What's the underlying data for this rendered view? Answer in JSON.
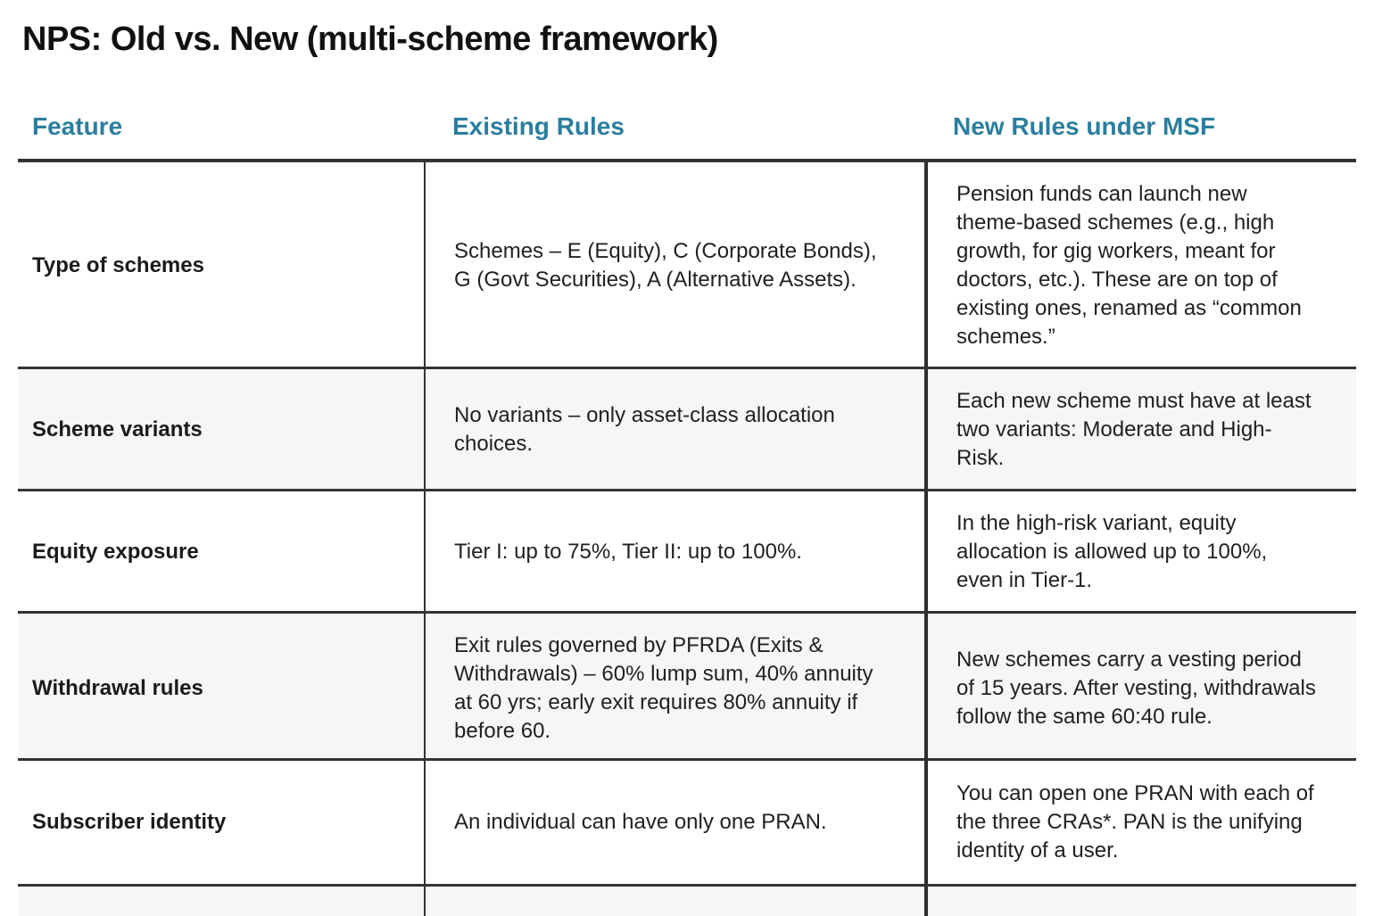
{
  "page_title": "NPS: Old vs. New (multi-scheme framework)",
  "colors": {
    "accent_teal": "#2b7e9d",
    "border_dark": "#333333",
    "alt_row_bg": "#f6f6f6",
    "body_text": "#202124"
  },
  "table": {
    "columns": [
      "Feature",
      "Existing Rules",
      "New Rules under MSF"
    ],
    "rows": [
      {
        "feature": "Type of schemes",
        "existing": "Schemes – E (Equity), C (Corporate Bonds), G (Govt Securities), A (Alternative Assets).",
        "new": "Pension funds can launch new theme-based schemes (e.g., high growth, for gig workers, meant for doctors, etc.). These are on top of existing ones, renamed as “common schemes.”"
      },
      {
        "feature": "Scheme variants",
        "existing": "No variants – only asset-class allocation choices.",
        "new": "Each new scheme must have at least two variants: Moderate and High-Risk."
      },
      {
        "feature": "Equity exposure",
        "existing": "Tier I: up to 75%, Tier II: up to 100%.",
        "new": "In the high-risk variant, equity allocation is allowed up to 100%, even in Tier-1."
      },
      {
        "feature": "Withdrawal rules",
        "existing": "Exit rules governed by PFRDA (Exits & Withdrawals) – 60% lump sum, 40% annuity at 60 yrs; early exit requires 80% annuity if before 60.",
        "new": "New schemes carry a vesting period of 15 years. After vesting, withdrawals follow the same 60:40 rule."
      },
      {
        "feature": "Subscriber identity",
        "existing": "An individual can have only one PRAN.",
        "new": "You can open one PRAN with each of the three CRAs*. PAN is the unifying identity of a user."
      },
      {
        "feature": "",
        "existing": "",
        "new": ""
      }
    ]
  }
}
